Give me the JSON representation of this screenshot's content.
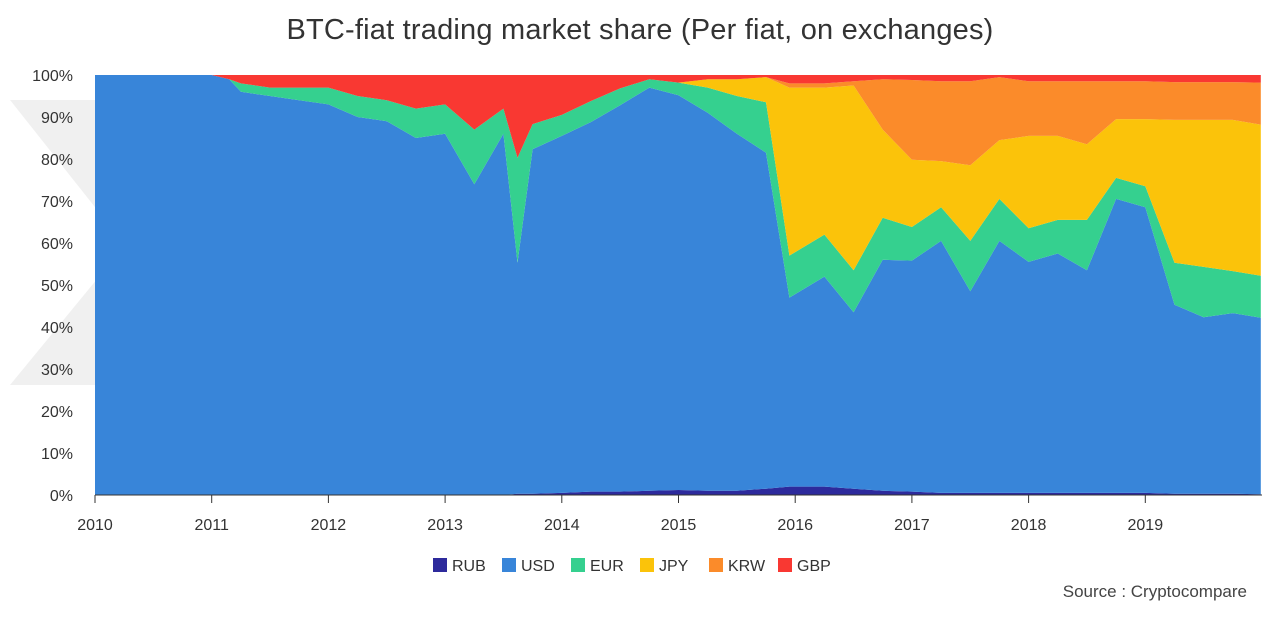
{
  "title": "BTC-fiat trading market share (Per fiat, on exchanges)",
  "source": "Source : Cryptocompare",
  "chart_data": {
    "type": "area",
    "stacked": true,
    "normalized": true,
    "title": "BTC-fiat trading market share (Per fiat, on exchanges)",
    "xlabel": "",
    "ylabel": "",
    "xlim": [
      2010.0,
      2020.0
    ],
    "ylim": [
      0,
      100
    ],
    "y_ticks": [
      "0%",
      "10%",
      "20%",
      "30%",
      "40%",
      "50%",
      "60%",
      "70%",
      "80%",
      "90%",
      "100%"
    ],
    "x_ticks": [
      "2010",
      "2011",
      "2012",
      "2013",
      "2014",
      "2015",
      "2016",
      "2017",
      "2018",
      "2019"
    ],
    "legend_position": "bottom",
    "grid": false,
    "x": [
      2010.0,
      2011.0,
      2011.15,
      2011.25,
      2011.5,
      2011.75,
      2012.0,
      2012.25,
      2012.5,
      2012.75,
      2013.0,
      2013.25,
      2013.5,
      2013.62,
      2013.75,
      2014.0,
      2014.25,
      2014.5,
      2014.75,
      2015.0,
      2015.25,
      2015.5,
      2015.75,
      2015.95,
      2016.25,
      2016.5,
      2016.75,
      2017.0,
      2017.25,
      2017.5,
      2017.75,
      2018.0,
      2018.25,
      2018.5,
      2018.75,
      2019.0,
      2019.25,
      2019.5,
      2019.75,
      2019.99
    ],
    "series": [
      {
        "name": "RUB",
        "color": "#2d2a9c",
        "values": [
          0,
          0,
          0,
          0,
          0,
          0,
          0,
          0,
          0,
          0,
          0,
          0,
          0,
          0.3,
          0.3,
          0.5,
          0.8,
          0.8,
          1,
          1.2,
          1,
          1,
          1.5,
          2,
          2,
          1.5,
          1,
          0.8,
          0.5,
          0.5,
          0.5,
          0.5,
          0.5,
          0.5,
          0.5,
          0.5,
          0.3,
          0.3,
          0.3,
          0.2
        ]
      },
      {
        "name": "USD",
        "color": "#3885d9",
        "values": [
          100,
          100,
          99,
          96,
          95,
          94,
          93,
          90,
          89,
          85,
          86,
          74,
          86,
          55,
          82,
          85,
          88,
          92,
          96,
          94,
          90,
          85,
          80,
          45,
          50,
          42,
          55,
          55,
          60,
          48,
          60,
          55,
          57,
          53,
          70,
          68,
          45,
          42,
          43,
          42
        ]
      },
      {
        "name": "EUR",
        "color": "#35d08f",
        "values": [
          0,
          0,
          0,
          2,
          2,
          3,
          4,
          5,
          5,
          7,
          7,
          13,
          6,
          25,
          6,
          5,
          5,
          4,
          2,
          3,
          6,
          9,
          12,
          10,
          10,
          10,
          10,
          8,
          8,
          12,
          10,
          8,
          8,
          12,
          5,
          5,
          10,
          12,
          10,
          10
        ]
      },
      {
        "name": "JPY",
        "color": "#fbc30a",
        "values": [
          0,
          0,
          0,
          0,
          0,
          0,
          0,
          0,
          0,
          0,
          0,
          0,
          0,
          0,
          0,
          0,
          0,
          0,
          0,
          0,
          2,
          4,
          6,
          40,
          35,
          44,
          21,
          16,
          11,
          18,
          14,
          22,
          20,
          18,
          14,
          16,
          34,
          35,
          36,
          36
        ]
      },
      {
        "name": "KRW",
        "color": "#fb8b2a",
        "values": [
          0,
          0,
          0,
          0,
          0,
          0,
          0,
          0,
          0,
          0,
          0,
          0,
          0,
          0,
          0,
          0,
          0,
          0,
          0,
          0,
          0,
          0,
          0,
          1,
          1,
          1,
          12,
          19,
          19,
          20,
          15,
          13,
          13,
          15,
          9,
          9,
          9,
          9,
          9,
          10
        ]
      },
      {
        "name": "GBP",
        "color": "#f93832",
        "values": [
          0,
          0,
          1,
          2,
          3,
          3,
          3,
          5,
          6,
          8,
          7,
          13,
          8,
          19.7,
          11.7,
          9.5,
          6.2,
          3.2,
          1,
          1.8,
          1,
          1,
          0.5,
          2,
          2,
          1.5,
          1,
          1.2,
          1.5,
          1.5,
          0.5,
          1.5,
          1.5,
          1.5,
          1.5,
          1.5,
          1.7,
          1.7,
          1.7,
          1.8
        ]
      }
    ]
  }
}
